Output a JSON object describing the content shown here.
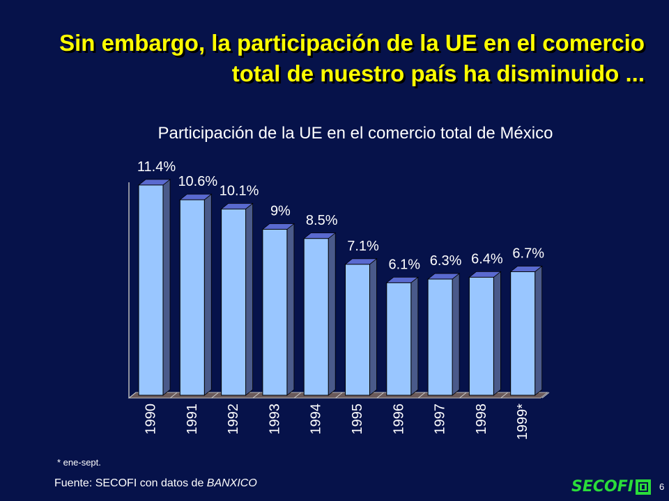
{
  "slide": {
    "title": "Sin embargo, la participación de la UE en el comercio total de nuestro país ha disminuido ...",
    "footnote": "* ene-sept.",
    "source_prefix": "Fuente: SECOFI con datos de ",
    "source_emphasis": "BANXICO",
    "logo_text": "SECOFI",
    "page_number": "6"
  },
  "colors": {
    "background": "#06124a",
    "title": "#ffff00",
    "bar_front": "#99c6ff",
    "bar_side": "#4a5a8a",
    "bar_top": "#5a6ad0",
    "text": "#ffffff"
  },
  "chart_data": {
    "type": "bar",
    "title": "Participación de la UE en el comercio total de México",
    "categories": [
      "1990",
      "1991",
      "1992",
      "1993",
      "1994",
      "1995",
      "1996",
      "1997",
      "1998",
      "1999*"
    ],
    "values": [
      11.4,
      10.6,
      10.1,
      9.0,
      8.5,
      7.1,
      6.1,
      6.3,
      6.4,
      6.7
    ],
    "data_labels": [
      "11.4%",
      "10.6%",
      "10.1%",
      "9%",
      "8.5%",
      "7.1%",
      "6.1%",
      "6.3%",
      "6.4%",
      "6.7%"
    ],
    "ylim": [
      0,
      12
    ],
    "xlabel": "",
    "ylabel": "",
    "grid": false,
    "legend": "none",
    "bar_style": "3d"
  }
}
